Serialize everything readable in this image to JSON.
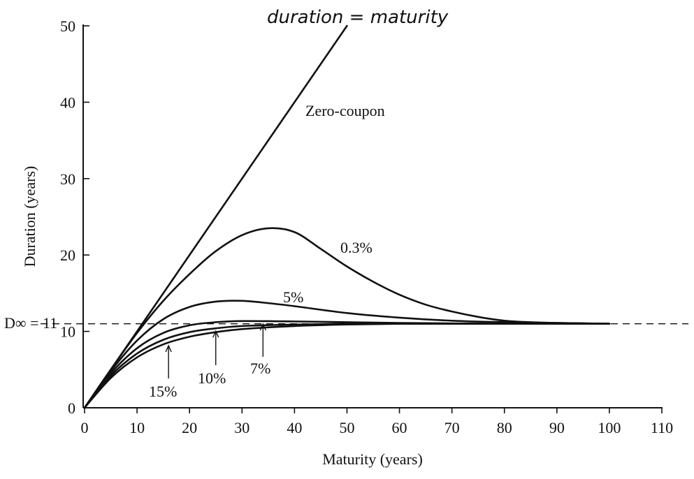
{
  "chart_data": {
    "type": "line",
    "title": "",
    "xlabel": "Maturity (years)",
    "ylabel": "Duration (years)",
    "xlim": [
      0,
      110
    ],
    "ylim": [
      0,
      50
    ],
    "x_ticks": [
      0,
      10,
      20,
      30,
      40,
      50,
      60,
      70,
      80,
      90,
      100,
      110
    ],
    "y_ticks": [
      0,
      10,
      20,
      30,
      40,
      50
    ],
    "grid": false,
    "handwritten_note": "duration = maturity",
    "asymptote": {
      "label": "D∞ = 11",
      "y": 11
    },
    "series": [
      {
        "name": "Zero-coupon",
        "x": [
          0,
          50
        ],
        "y": [
          0,
          50
        ]
      },
      {
        "name": "0.3%",
        "x": [
          0,
          5,
          10,
          15,
          20,
          25,
          30,
          35,
          40,
          45,
          50,
          55,
          60,
          65,
          70,
          75,
          80,
          85,
          90,
          100
        ],
        "y": [
          0,
          5.0,
          9.8,
          14.0,
          17.5,
          20.5,
          22.6,
          23.5,
          23.0,
          20.8,
          18.5,
          16.5,
          14.8,
          13.5,
          12.6,
          11.9,
          11.4,
          11.2,
          11.1,
          11.0
        ]
      },
      {
        "name": "5%",
        "x": [
          0,
          5,
          10,
          15,
          20,
          25,
          30,
          35,
          40,
          50,
          60,
          70,
          80,
          90,
          100
        ],
        "y": [
          0,
          4.8,
          8.8,
          11.6,
          13.2,
          13.9,
          14.0,
          13.7,
          13.3,
          12.4,
          11.8,
          11.4,
          11.2,
          11.1,
          11.0
        ]
      },
      {
        "name": "7%",
        "x": [
          0,
          5,
          10,
          15,
          20,
          25,
          30,
          40,
          50,
          60,
          70,
          80,
          90,
          100
        ],
        "y": [
          0,
          4.5,
          7.8,
          9.8,
          10.8,
          11.2,
          11.35,
          11.3,
          11.2,
          11.1,
          11.05,
          11.0,
          11.0,
          11.0
        ]
      },
      {
        "name": "10%",
        "x": [
          0,
          5,
          10,
          15,
          20,
          25,
          30,
          40,
          50,
          60,
          70,
          80,
          90,
          100
        ],
        "y": [
          0,
          4.2,
          7.1,
          8.9,
          9.9,
          10.4,
          10.7,
          10.9,
          11.0,
          11.0,
          11.0,
          11.0,
          11.0,
          11.0
        ]
      },
      {
        "name": "15%",
        "x": [
          0,
          5,
          10,
          15,
          20,
          25,
          30,
          40,
          50,
          60,
          70,
          80,
          90,
          100
        ],
        "y": [
          0,
          3.9,
          6.6,
          8.3,
          9.3,
          9.9,
          10.3,
          10.7,
          10.9,
          11.0,
          11.0,
          11.0,
          11.0,
          11.0
        ]
      }
    ]
  }
}
